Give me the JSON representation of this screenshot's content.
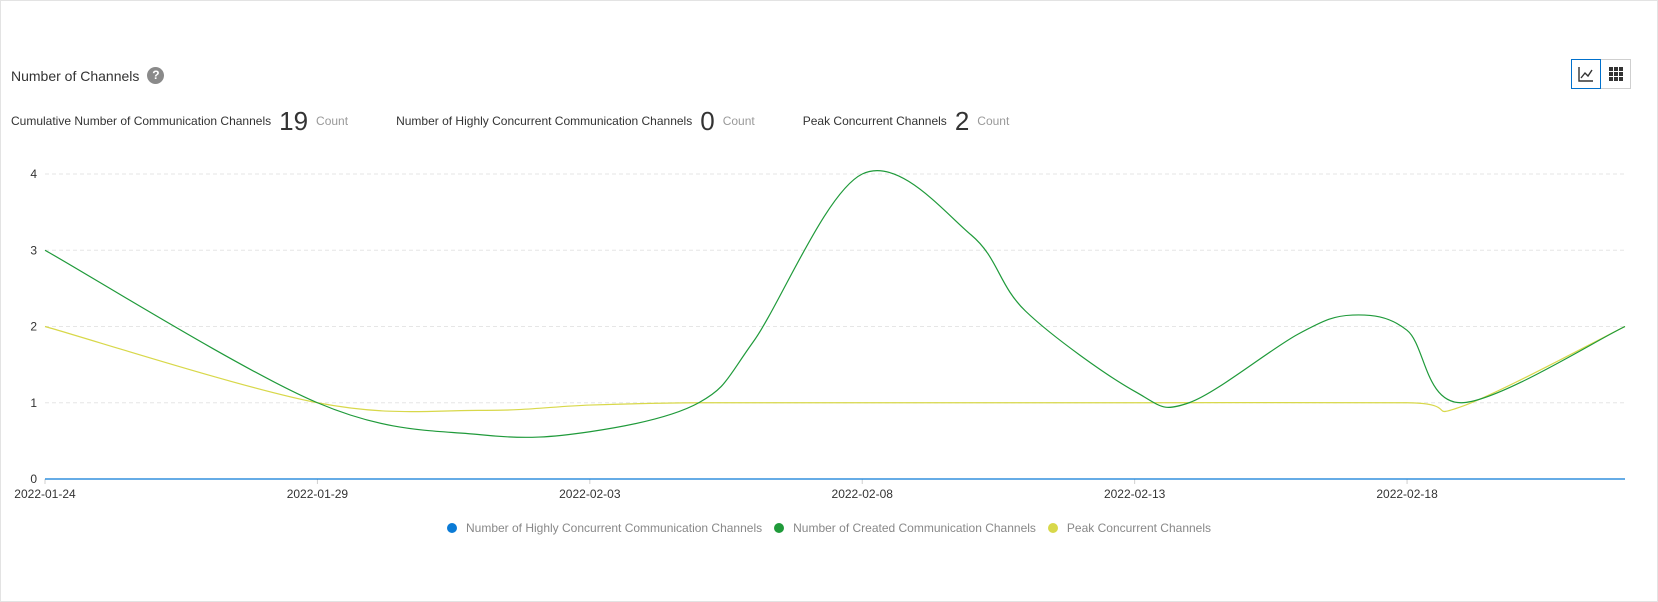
{
  "header": {
    "title": "Number of Channels",
    "help_glyph": "?"
  },
  "view_toggle": {
    "chart_icon": "line-chart-icon",
    "grid_icon": "grid-icon",
    "active": "chart",
    "accent_color": "#0070cc"
  },
  "stats": [
    {
      "label": "Cumulative Number of Communication Channels",
      "value": "19",
      "unit": "Count"
    },
    {
      "label": "Number of Highly Concurrent Communication Channels",
      "value": "0",
      "unit": "Count"
    },
    {
      "label": "Peak Concurrent Channels",
      "value": "2",
      "unit": "Count"
    }
  ],
  "chart_data": {
    "type": "line",
    "x": [
      "2022-01-24",
      "2022-01-29",
      "2022-02-03",
      "2022-02-08",
      "2022-02-13",
      "2022-02-18",
      "2022-02-22"
    ],
    "x_tick_labels": [
      "2022-01-24",
      "2022-01-29",
      "2022-02-03",
      "2022-02-08",
      "2022-02-13",
      "2022-02-18"
    ],
    "y_ticks": [
      0,
      1,
      2,
      3,
      4
    ],
    "ylim": [
      0,
      4
    ],
    "grid": true,
    "legend_position": "bottom-center",
    "series": [
      {
        "name": "Number of Highly Concurrent Communication Channels",
        "color": "#0b7bd6",
        "points": [
          [
            "2022-01-24",
            0
          ],
          [
            "2022-02-22",
            0
          ]
        ]
      },
      {
        "name": "Number of Created Communication Channels",
        "color": "#1f9a3a",
        "points": [
          [
            "2022-01-24",
            3
          ],
          [
            "2022-01-29",
            1
          ],
          [
            "2022-02-01",
            0.58
          ],
          [
            "2022-02-03",
            0.62
          ],
          [
            "2022-02-05",
            1.0
          ],
          [
            "2022-02-06",
            1.8
          ],
          [
            "2022-02-08",
            4
          ],
          [
            "2022-02-10",
            3.2
          ],
          [
            "2022-02-11",
            2.2
          ],
          [
            "2022-02-13",
            1.15
          ],
          [
            "2022-02-14",
            1
          ],
          [
            "2022-02-16",
            1.9
          ],
          [
            "2022-02-17",
            2.15
          ],
          [
            "2022-02-18",
            1.95
          ],
          [
            "2022-02-19",
            1
          ],
          [
            "2022-02-22",
            2
          ]
        ]
      },
      {
        "name": "Peak Concurrent Channels",
        "color": "#d8d84a",
        "points": [
          [
            "2022-01-24",
            2
          ],
          [
            "2022-01-29",
            1
          ],
          [
            "2022-02-01",
            0.9
          ],
          [
            "2022-02-03",
            0.97
          ],
          [
            "2022-02-05",
            1
          ],
          [
            "2022-02-08",
            1
          ],
          [
            "2022-02-13",
            1
          ],
          [
            "2022-02-18",
            1
          ],
          [
            "2022-02-19",
            0.95
          ],
          [
            "2022-02-22",
            2
          ]
        ]
      }
    ]
  }
}
